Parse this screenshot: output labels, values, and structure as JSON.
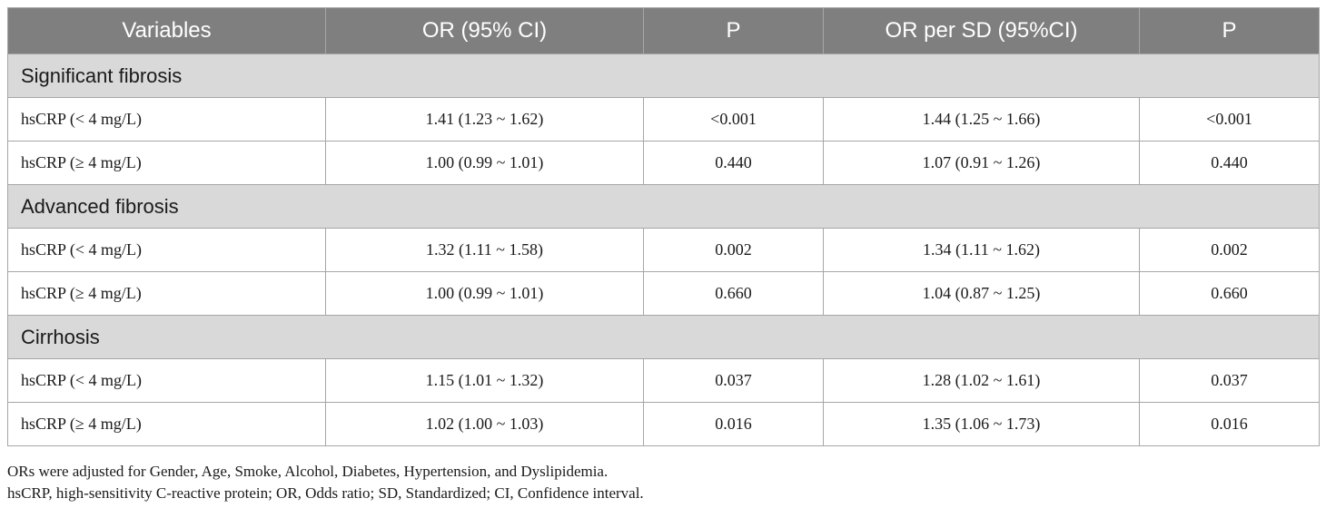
{
  "table": {
    "headers": [
      "Variables",
      "OR (95% CI)",
      "P",
      "OR per SD (95%CI)",
      "P"
    ],
    "sections": [
      {
        "title": "Significant fibrosis",
        "rows": [
          [
            "hsCRP (< 4 mg/L)",
            "1.41 (1.23 ~ 1.62)",
            "<0.001",
            "1.44 (1.25 ~ 1.66)",
            "<0.001"
          ],
          [
            "hsCRP (≥ 4 mg/L)",
            "1.00 (0.99 ~ 1.01)",
            "0.440",
            "1.07 (0.91 ~ 1.26)",
            "0.440"
          ]
        ]
      },
      {
        "title": "Advanced fibrosis",
        "rows": [
          [
            "hsCRP (< 4 mg/L)",
            "1.32 (1.11 ~ 1.58)",
            "0.002",
            "1.34 (1.11 ~ 1.62)",
            "0.002"
          ],
          [
            "hsCRP (≥ 4 mg/L)",
            "1.00 (0.99 ~ 1.01)",
            "0.660",
            "1.04 (0.87 ~ 1.25)",
            "0.660"
          ]
        ]
      },
      {
        "title": "Cirrhosis",
        "rows": [
          [
            "hsCRP (< 4 mg/L)",
            "1.15 (1.01 ~ 1.32)",
            "0.037",
            "1.28 (1.02 ~ 1.61)",
            "0.037"
          ],
          [
            "hsCRP (≥ 4 mg/L)",
            "1.02 (1.00 ~ 1.03)",
            "0.016",
            "1.35 (1.06 ~ 1.73)",
            "0.016"
          ]
        ]
      }
    ]
  },
  "footnotes": [
    "ORs were adjusted for Gender, Age, Smoke, Alcohol, Diabetes, Hypertension, and Dyslipidemia.",
    "hsCRP, high-sensitivity C-reactive protein; OR, Odds ratio; SD, Standardized; CI, Confidence interval."
  ],
  "colors": {
    "header_bg": "#7f7f7f",
    "section_bg": "#d9d9d9",
    "border": "#a6a6a6"
  }
}
